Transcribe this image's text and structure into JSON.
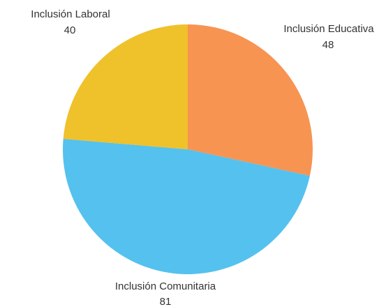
{
  "chart_data": {
    "type": "pie",
    "title": "",
    "categories": [
      "Inclusión Educativa",
      "Inclusión Comunitaria",
      "Inclusión Laboral"
    ],
    "values": [
      48,
      81,
      40
    ],
    "colors": [
      "#F79452",
      "#55C1EE",
      "#EFC12A"
    ],
    "start_angle": "12 o'clock",
    "direction": "clockwise",
    "legend": "none",
    "labels": "outside slices, name above value"
  }
}
